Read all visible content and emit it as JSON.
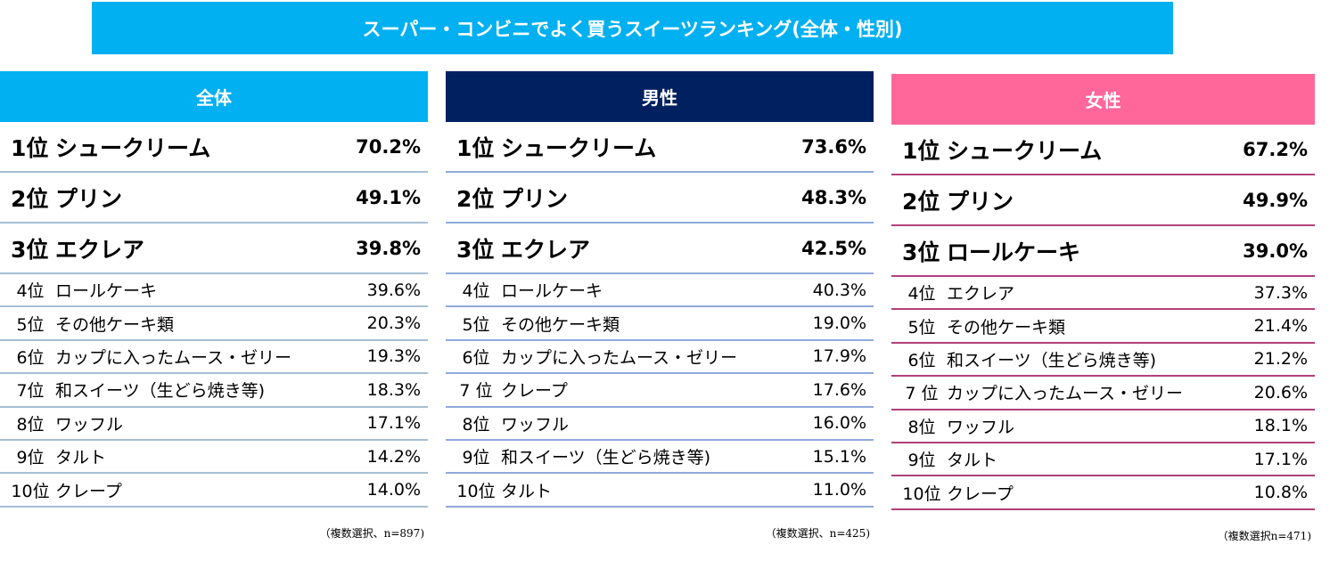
{
  "title": "スーパー・コンビニでよく買うスイーツランキング(全体・性別)",
  "panels": [
    {
      "header": "全体",
      "header_color": "#00b0f0",
      "line_color": "#a6bfd3",
      "note": "（複数選択、n=897)",
      "rows": [
        [
          "1位",
          "シュークリーム",
          "70.2%"
        ],
        [
          "2位",
          "プリン",
          "49.1%"
        ],
        [
          "3位",
          "エクレア",
          "39.8%"
        ],
        [
          "4位",
          "ロールケーキ",
          "39.6%"
        ],
        [
          "5位",
          "その他ケーキ類",
          "20.3%"
        ],
        [
          "6位",
          "カップに入ったムース・ゼリー",
          "19.3%"
        ],
        [
          "7位",
          "和スイーツ（生どら焼き等)",
          "18.3%"
        ],
        [
          "8位",
          "ワッフル",
          "17.1%"
        ],
        [
          "9位",
          "タルト",
          "14.2%"
        ],
        [
          "10位",
          "クレープ",
          "14.0%"
        ]
      ]
    },
    {
      "header": "男性",
      "header_color": "#002060",
      "line_color": "#8faadc",
      "note": "（複数選択、n=425)",
      "rows": [
        [
          "1位",
          "シュークリーム",
          "73.6%"
        ],
        [
          "2位",
          "プリン",
          "48.3%"
        ],
        [
          "3位",
          "エクレア",
          "42.5%"
        ],
        [
          "4位",
          "ロールケーキ",
          "40.3%"
        ],
        [
          "5位",
          "その他ケーキ類",
          "19.0%"
        ],
        [
          "6位",
          "カップに入ったムース・ゼリー",
          "17.9%"
        ],
        [
          "7 位",
          "クレープ",
          "17.6%"
        ],
        [
          "8位",
          "ワッフル",
          "16.0%"
        ],
        [
          "9位",
          "和スイーツ（生どら焼き等)",
          "15.1%"
        ],
        [
          "10位",
          "タルト",
          "11.0%"
        ]
      ]
    },
    {
      "header": "女性",
      "header_color": "#ff6699",
      "line_color": "#b0407a",
      "note": "（複数選択n=471)",
      "rows": [
        [
          "1位",
          "シュークリーム",
          "67.2%"
        ],
        [
          "2位",
          "プリン",
          "49.9%"
        ],
        [
          "3位",
          "ロールケーキ",
          "39.0%"
        ],
        [
          "4位",
          "エクレア",
          "37.3%"
        ],
        [
          "5位",
          "その他ケーキ類",
          "21.4%"
        ],
        [
          "6位",
          "和スイーツ（生どら焼き等)",
          "21.2%"
        ],
        [
          "7 位",
          "カップに入ったムース・ゼリー",
          "20.6%"
        ],
        [
          "8位",
          "ワッフル",
          "18.1%"
        ],
        [
          "9位",
          "タルト",
          "17.1%"
        ],
        [
          "10位",
          "クレープ",
          "10.8%"
        ]
      ]
    }
  ]
}
